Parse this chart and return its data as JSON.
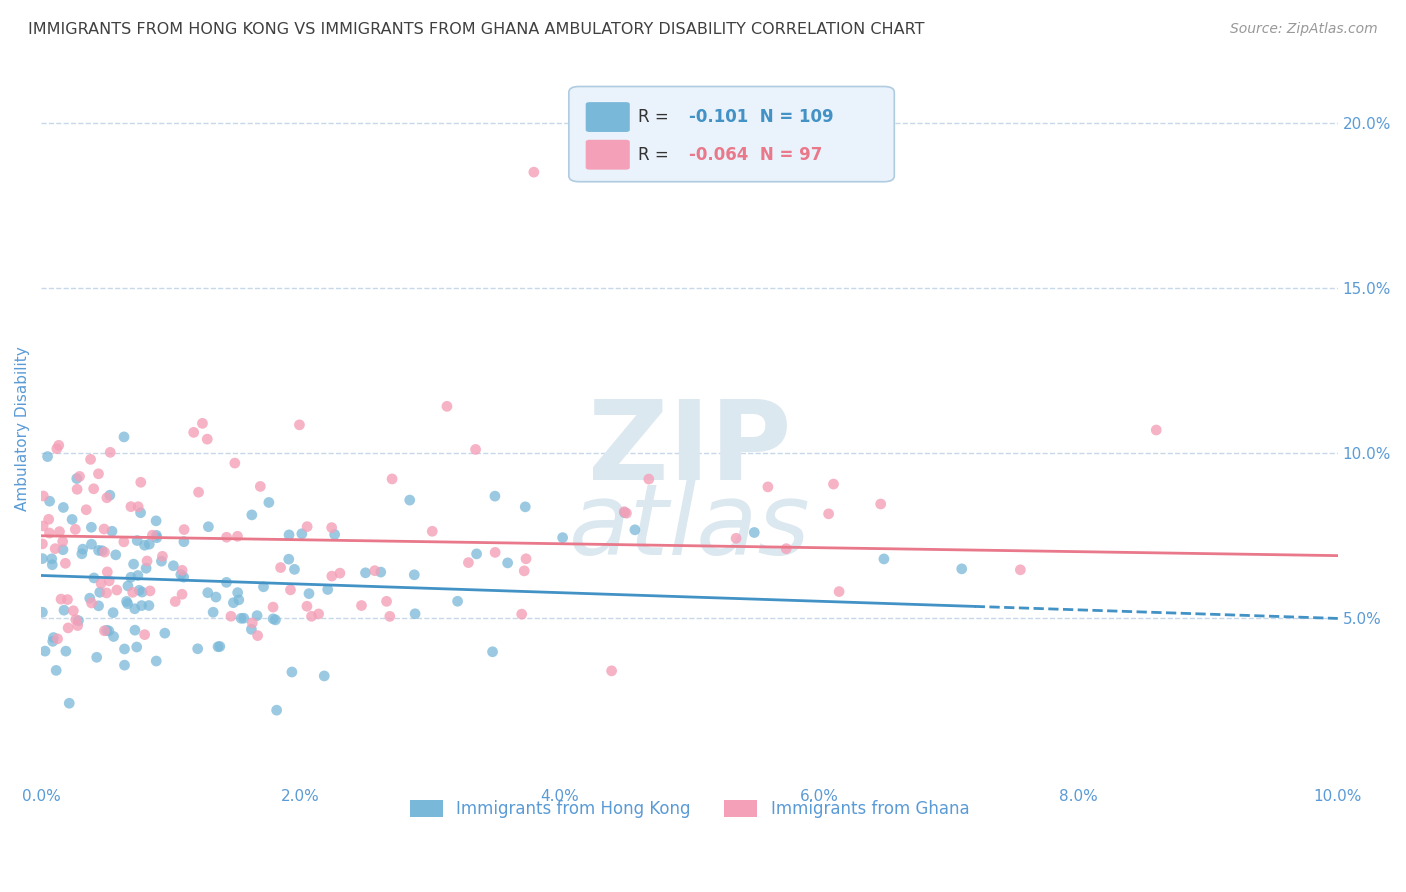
{
  "title": "IMMIGRANTS FROM HONG KONG VS IMMIGRANTS FROM GHANA AMBULATORY DISABILITY CORRELATION CHART",
  "source": "Source: ZipAtlas.com",
  "ylabel": "Ambulatory Disability",
  "x_min": 0.0,
  "x_max": 0.1,
  "y_min": 0.0,
  "y_max": 0.215,
  "y_ticks": [
    0.05,
    0.1,
    0.15,
    0.2
  ],
  "y_tick_labels": [
    "5.0%",
    "10.0%",
    "15.0%",
    "20.0%"
  ],
  "x_ticks": [
    0.0,
    0.02,
    0.04,
    0.06,
    0.08,
    0.1
  ],
  "x_tick_labels": [
    "0.0%",
    "2.0%",
    "4.0%",
    "6.0%",
    "8.0%",
    "10.0%"
  ],
  "hk_color": "#7ab8d9",
  "ghana_color": "#f4a0b8",
  "hk_R": -0.101,
  "hk_N": 109,
  "ghana_R": -0.064,
  "ghana_N": 97,
  "hk_trend_color": "#4292c6",
  "ghana_trend_color": "#e8788a",
  "background_color": "#ffffff",
  "grid_color": "#c0d4e8",
  "title_color": "#404040",
  "axis_label_color": "#5b9bd5",
  "tick_label_color": "#5b9bd5",
  "source_color": "#999999",
  "watermark_color": "#dce8f0"
}
